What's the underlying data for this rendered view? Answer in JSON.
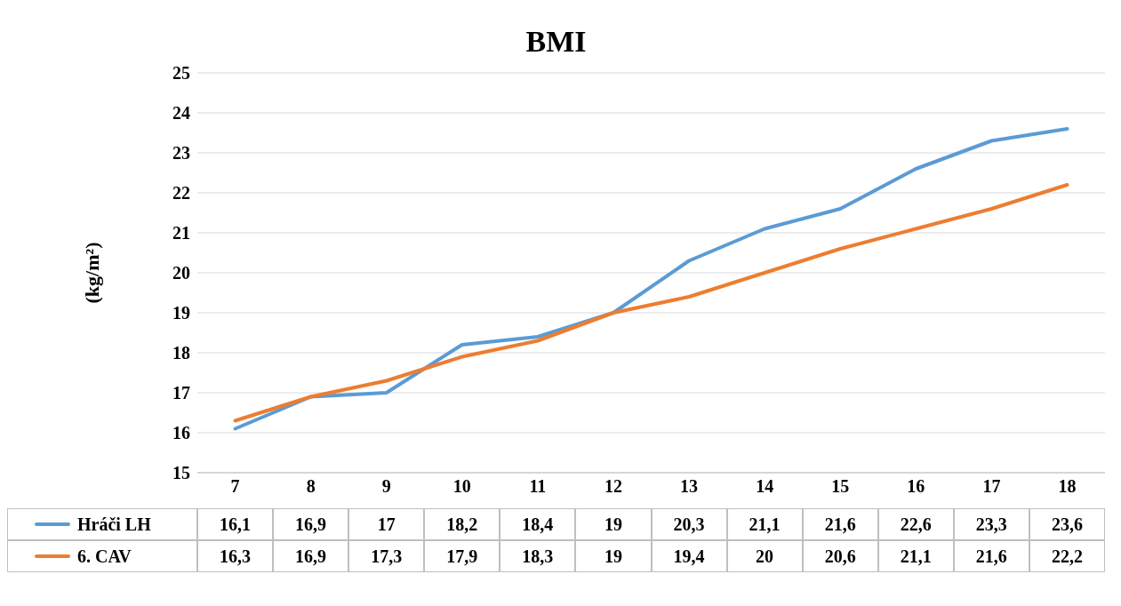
{
  "chart_data": {
    "type": "line",
    "title": "BMI",
    "ylabel": "(kg/m²)",
    "categories": [
      "7",
      "8",
      "9",
      "10",
      "11",
      "12",
      "13",
      "14",
      "15",
      "16",
      "17",
      "18"
    ],
    "series": [
      {
        "name": "Hráči LH",
        "color": "#5b9bd5",
        "values": [
          16.1,
          16.9,
          17,
          18.2,
          18.4,
          19,
          20.3,
          21.1,
          21.6,
          22.6,
          23.3,
          23.6
        ],
        "value_labels": [
          "16,1",
          "16,9",
          "17",
          "18,2",
          "18,4",
          "19",
          "20,3",
          "21,1",
          "21,6",
          "22,6",
          "23,3",
          "23,6"
        ]
      },
      {
        "name": "6. CAV",
        "color": "#ed7d31",
        "values": [
          16.3,
          16.9,
          17.3,
          17.9,
          18.3,
          19,
          19.4,
          20,
          20.6,
          21.1,
          21.6,
          22.2
        ],
        "value_labels": [
          "16,3",
          "16,9",
          "17,3",
          "17,9",
          "18,3",
          "19",
          "19,4",
          "20",
          "20,6",
          "21,1",
          "21,6",
          "22,2"
        ]
      }
    ],
    "ylim": [
      15,
      25
    ],
    "yticks": [
      15,
      16,
      17,
      18,
      19,
      20,
      21,
      22,
      23,
      24,
      25
    ],
    "grid": "y",
    "legend": "bottom",
    "marker": "none",
    "line_style": "solid"
  }
}
